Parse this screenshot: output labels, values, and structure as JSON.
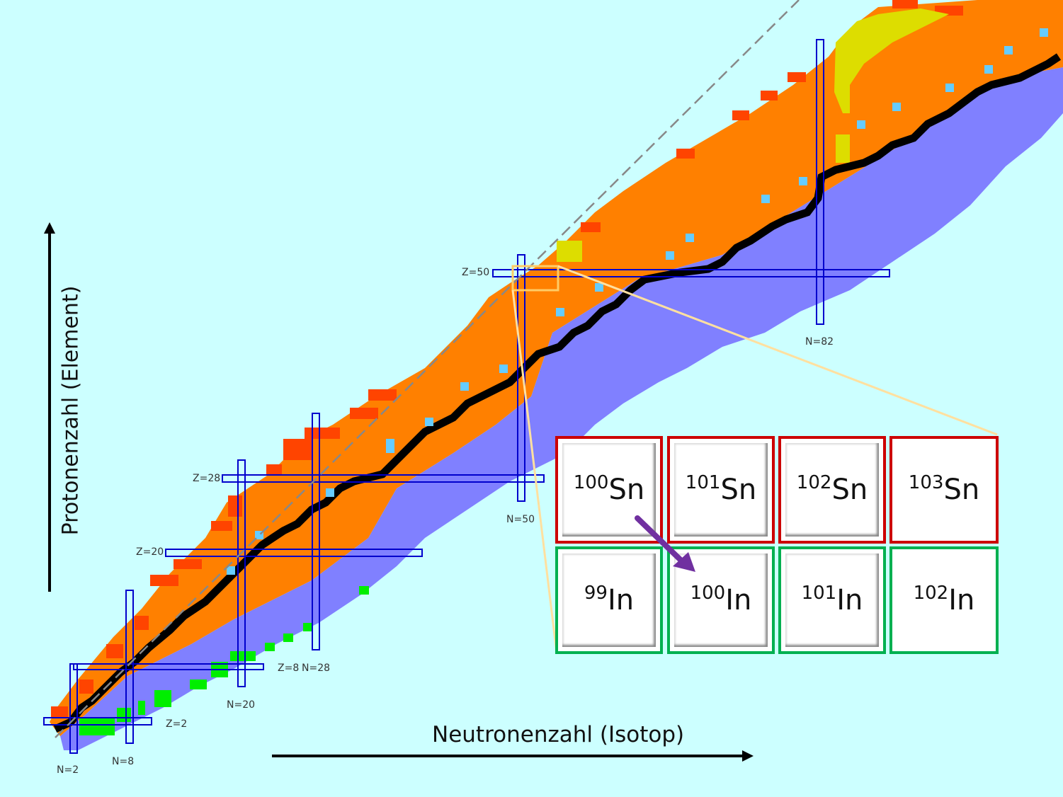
{
  "axes": {
    "x_label": "Neutronenzahl (Isotop)",
    "y_label": "Protonenzahl (Element)"
  },
  "magic_numbers": {
    "z_labels": [
      "Z=2",
      "Z=8",
      "Z=20",
      "Z=28",
      "Z=50"
    ],
    "n_labels": [
      "N=2",
      "N=8",
      "N=20",
      "N=28",
      "N=50",
      "N=82"
    ]
  },
  "zoom_tiles": {
    "top_row": [
      {
        "mass": "100",
        "symbol": "Sn"
      },
      {
        "mass": "101",
        "symbol": "Sn"
      },
      {
        "mass": "102",
        "symbol": "Sn"
      },
      {
        "mass": "103",
        "symbol": "Sn"
      }
    ],
    "bottom_row": [
      {
        "mass": "99",
        "symbol": "In"
      },
      {
        "mass": "100",
        "symbol": "In"
      },
      {
        "mass": "101",
        "symbol": "In"
      },
      {
        "mass": "102",
        "symbol": "In"
      }
    ]
  },
  "colors": {
    "background": "#ccffff",
    "proton_rich": "#ff8000",
    "neutron_rich": "#8080ff",
    "stable": "#000000",
    "proton_emitter": "#ff4400",
    "alpha": "#dddd00",
    "magic_lines": "#0000cc",
    "sn_border": "#cc0000",
    "in_border": "#00b050",
    "arrow": "#7030a0"
  }
}
